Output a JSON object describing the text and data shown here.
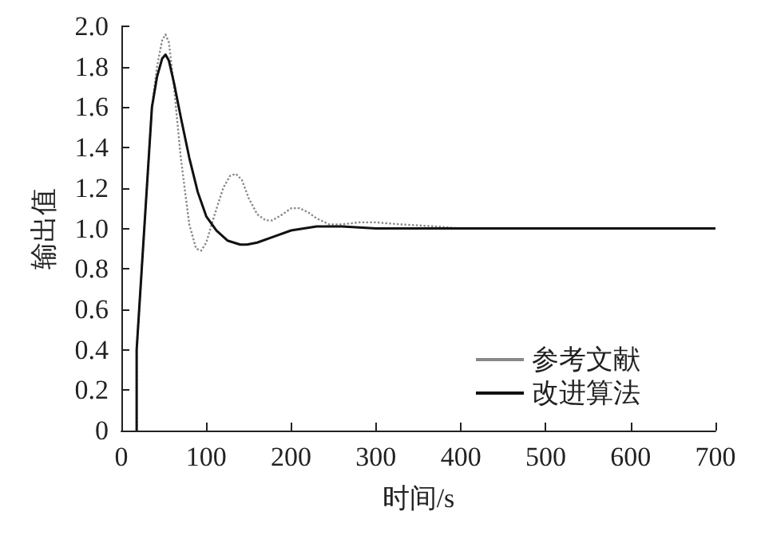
{
  "chart_data": {
    "type": "line",
    "xlabel": "时间/s",
    "ylabel": "输出值",
    "xlim": [
      0,
      700
    ],
    "ylim": [
      0,
      2.0
    ],
    "xticks": [
      0,
      100,
      200,
      300,
      400,
      500,
      600,
      700
    ],
    "yticks": [
      0,
      {
        "value": 0.2,
        "label": "0.2"
      },
      {
        "value": 0.4,
        "label": "0.4"
      },
      {
        "value": 0.6,
        "label": "0.6"
      },
      {
        "value": 0.8,
        "label": "0.8"
      },
      {
        "value": 1.0,
        "label": "1.0"
      },
      {
        "value": 1.2,
        "label": "1.2"
      },
      {
        "value": 1.4,
        "label": "1.4"
      },
      {
        "value": 1.6,
        "label": "1.6"
      },
      {
        "value": 1.8,
        "label": "1.8"
      },
      {
        "value": 2.0,
        "label": "2.0"
      }
    ],
    "legend": "bottom right",
    "grid": false,
    "marker": "none",
    "series": [
      {
        "name": "参考文献",
        "color": "#888888",
        "line_style": "dotted",
        "x": [
          18,
          18,
          24,
          30,
          36,
          42,
          48,
          52,
          56,
          62,
          70,
          80,
          88,
          94,
          100,
          110,
          120,
          128,
          135,
          142,
          150,
          160,
          170,
          178,
          190,
          200,
          210,
          220,
          230,
          245,
          260,
          280,
          300,
          330,
          370,
          400
        ],
        "values": [
          0,
          0.4,
          0.8,
          1.2,
          1.6,
          1.8,
          1.93,
          1.96,
          1.92,
          1.7,
          1.35,
          1.02,
          0.9,
          0.89,
          0.93,
          1.07,
          1.2,
          1.26,
          1.27,
          1.24,
          1.15,
          1.07,
          1.04,
          1.04,
          1.07,
          1.1,
          1.1,
          1.08,
          1.05,
          1.02,
          1.02,
          1.03,
          1.03,
          1.02,
          1.01,
          1.0
        ]
      },
      {
        "name": "改进算法",
        "color": "#111111",
        "line_style": "solid",
        "x": [
          18,
          18,
          24,
          30,
          36,
          42,
          48,
          52,
          56,
          62,
          70,
          80,
          90,
          100,
          112,
          125,
          140,
          148,
          160,
          180,
          200,
          215,
          230,
          260,
          300,
          400,
          500,
          600,
          700
        ],
        "values": [
          0,
          0.4,
          0.8,
          1.2,
          1.6,
          1.75,
          1.84,
          1.86,
          1.83,
          1.72,
          1.55,
          1.35,
          1.18,
          1.06,
          0.99,
          0.94,
          0.92,
          0.92,
          0.93,
          0.96,
          0.99,
          1.0,
          1.01,
          1.01,
          1.0,
          1.0,
          1.0,
          1.0,
          1.0
        ]
      }
    ]
  }
}
